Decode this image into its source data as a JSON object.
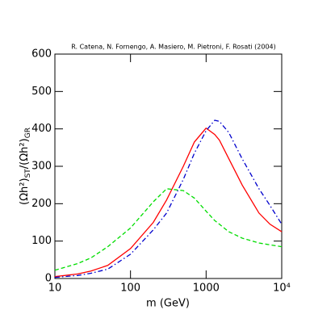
{
  "chart_data": {
    "type": "line",
    "title": "R. Catena, N. Fornengo, A. Masiero, M. Pietroni, F. Rosati (2004)",
    "xlabel": "m (GeV)",
    "ylabel": [
      "(Ωh²)",
      "ST",
      "/(Ωh²)",
      "GR"
    ],
    "xscale": "log",
    "x": [
      10,
      20,
      30,
      50,
      100,
      200,
      300,
      500,
      700,
      1000,
      1300,
      1500,
      2000,
      3000,
      5000,
      7000,
      10000
    ],
    "series": [
      {
        "color": "#ff0000",
        "dash": "solid",
        "values": [
          5,
          12,
          20,
          35,
          80,
          150,
          210,
          300,
          365,
          402,
          385,
          370,
          320,
          250,
          175,
          145,
          125
        ]
      },
      {
        "color": "#0000cc",
        "dash": "dashdot",
        "values": [
          3,
          8,
          14,
          25,
          65,
          130,
          175,
          265,
          335,
          395,
          423,
          420,
          390,
          320,
          240,
          195,
          145
        ]
      },
      {
        "color": "#00dd00",
        "dash": "dashed",
        "values": [
          22,
          40,
          55,
          85,
          135,
          205,
          240,
          235,
          215,
          180,
          155,
          145,
          125,
          108,
          95,
          90,
          85
        ]
      }
    ],
    "xlim": [
      10,
      10000
    ],
    "xticks": [
      10,
      100,
      1000,
      {
        "value": 10000,
        "label": "10⁴"
      }
    ],
    "ylim": [
      0,
      600
    ],
    "yticks": [
      0,
      100,
      200,
      300,
      400,
      500,
      600
    ]
  }
}
